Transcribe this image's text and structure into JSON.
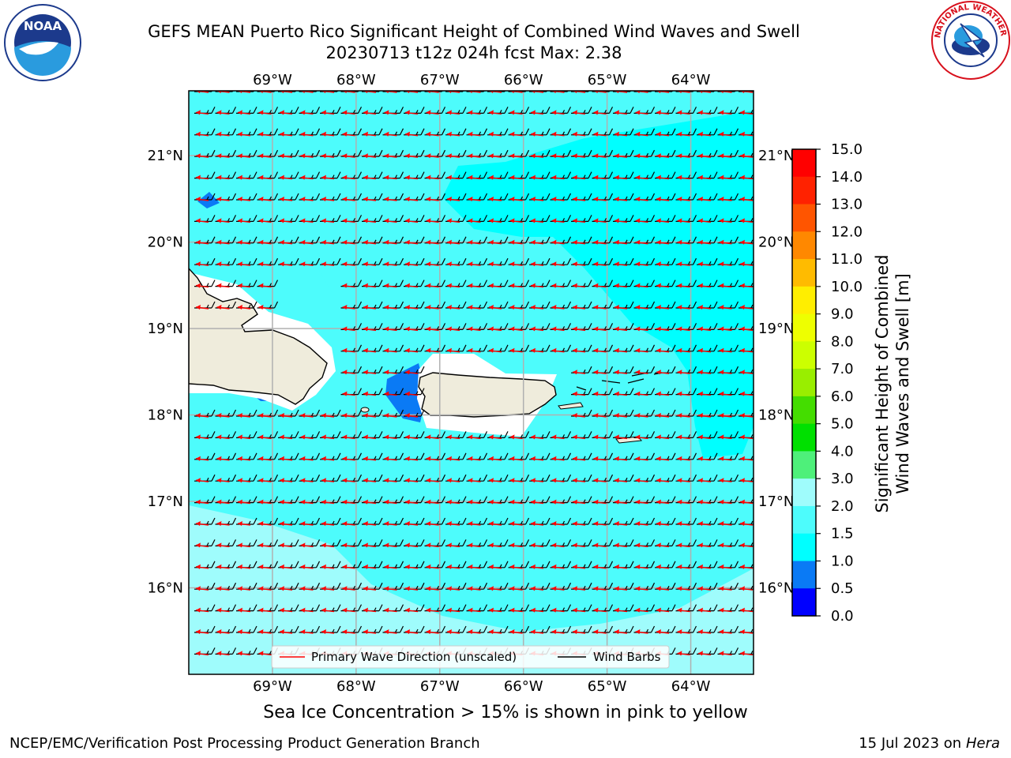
{
  "title": {
    "line1": "GEFS MEAN Puerto Rico Significant Height of Combined Wind Waves and Swell",
    "line2": "20230713 t12z 024h fcst   Max: 2.38"
  },
  "logos": {
    "left": {
      "name": "noaa-logo",
      "text": "NOAA"
    },
    "right": {
      "name": "nws-logo",
      "text": "NATIONAL WEATHER SERVICE"
    }
  },
  "map": {
    "lon_ticks": [
      "69°W",
      "68°W",
      "67°W",
      "66°W",
      "65°W",
      "64°W"
    ],
    "lat_ticks": [
      "21°N",
      "20°N",
      "19°N",
      "18°N",
      "17°N",
      "16°N"
    ],
    "lon_range": [
      -70,
      -63.25
    ],
    "lat_range": [
      15.0,
      21.75
    ],
    "colors": {
      "land": "#efecdc",
      "sea_1_1.5": "#00ffff",
      "sea_1.5_2": "#4dfcfc",
      "sea_2_3": "#9ffcfc",
      "sea_0.5_1": "#0a7af5",
      "wave_arrow": "#ff0000",
      "wind_barb": "#000000",
      "grid": "#b0b0b0"
    },
    "primary_wave_direction": "west",
    "legend": {
      "wave_label": "Primary Wave Direction (unscaled)",
      "wind_label": "Wind Barbs"
    }
  },
  "colorbar": {
    "label": "Significant Height of Combined Wind Waves and Swell [m]",
    "label_line1": "Significant Height of Combined",
    "label_line2": "Wind Waves and Swell [m]",
    "ticks": [
      "15.0",
      "14.0",
      "13.0",
      "12.0",
      "11.0",
      "10.0",
      "9.0",
      "8.0",
      "7.0",
      "6.0",
      "5.0",
      "4.0",
      "3.0",
      "2.0",
      "1.5",
      "1.0",
      "0.5",
      "0.0"
    ],
    "bins": [
      {
        "range": "14.0-15.0",
        "color": "#ff0000"
      },
      {
        "range": "13.0-14.0",
        "color": "#ff2200"
      },
      {
        "range": "12.0-13.0",
        "color": "#ff5500"
      },
      {
        "range": "11.0-12.0",
        "color": "#ff8800"
      },
      {
        "range": "10.0-11.0",
        "color": "#ffbb00"
      },
      {
        "range": "9.0-10.0",
        "color": "#ffee00"
      },
      {
        "range": "8.0-9.0",
        "color": "#eeff00"
      },
      {
        "range": "7.0-8.0",
        "color": "#ccff00"
      },
      {
        "range": "6.0-7.0",
        "color": "#99ee00"
      },
      {
        "range": "5.0-6.0",
        "color": "#44dd00"
      },
      {
        "range": "4.0-5.0",
        "color": "#00e000"
      },
      {
        "range": "3.0-4.0",
        "color": "#4ef07a"
      },
      {
        "range": "2.0-3.0",
        "color": "#9ffcfc"
      },
      {
        "range": "1.5-2.0",
        "color": "#4dfcfc"
      },
      {
        "range": "1.0-1.5",
        "color": "#00ffff"
      },
      {
        "range": "0.5-1.0",
        "color": "#0a7af5"
      },
      {
        "range": "0.0-0.5",
        "color": "#0000ff"
      }
    ]
  },
  "footer": {
    "ice_note": "Sea Ice Concentration > 15% is shown in pink to yellow",
    "branch": "NCEP/EMC/Verification Post Processing Product Generation Branch",
    "date_prefix": "15 Jul 2023 on ",
    "date_host": "Hera"
  }
}
